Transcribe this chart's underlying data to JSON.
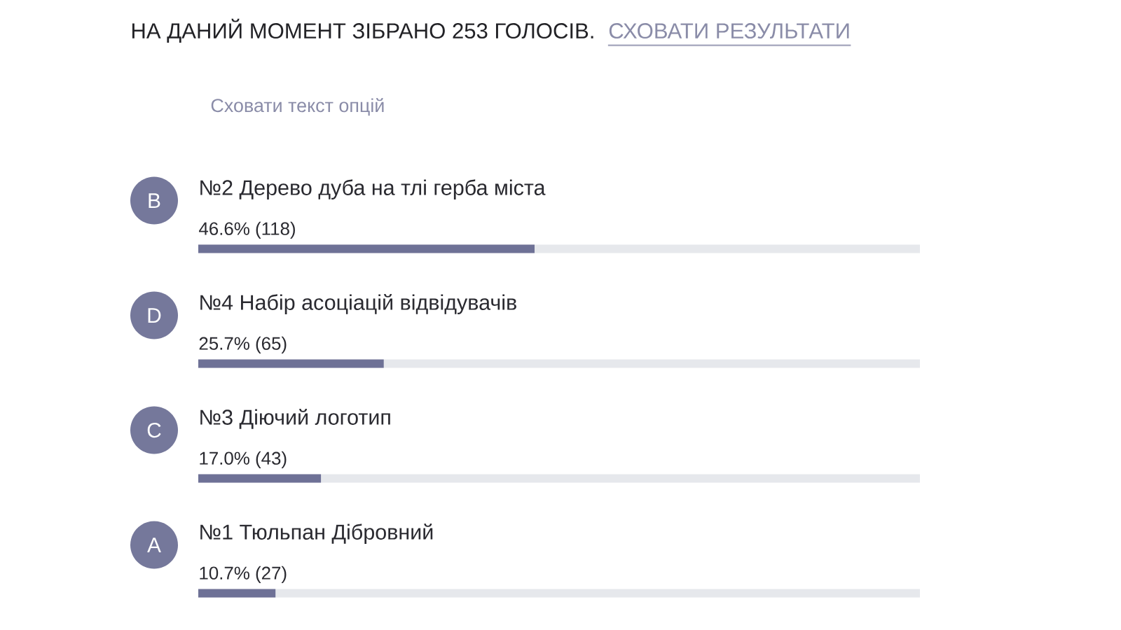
{
  "chart_data": {
    "type": "bar",
    "orientation": "horizontal",
    "title": "НА ДАНИЙ МОМЕНТ ЗІБРАНО 253 ГОЛОСІВ.",
    "categories": [
      "№2 Дерево дуба на тлі герба міста",
      "№4 Набір асоціацій відвідувачів",
      "№3 Діючий логотип",
      "№1 Тюльпан Дібровний"
    ],
    "values": [
      46.6,
      25.7,
      17.0,
      10.7
    ],
    "value_labels": [
      "46.6% (118)",
      "25.7% (65)",
      "17.0% (43)",
      "10.7% (27)"
    ],
    "color": "#6e7196",
    "xlim": [
      0,
      100
    ],
    "annotations": [
      "СХОВАТИ РЕЗУЛЬТАТИ",
      "Сховати текст опцій",
      "B",
      "D",
      "C",
      "A"
    ]
  }
}
